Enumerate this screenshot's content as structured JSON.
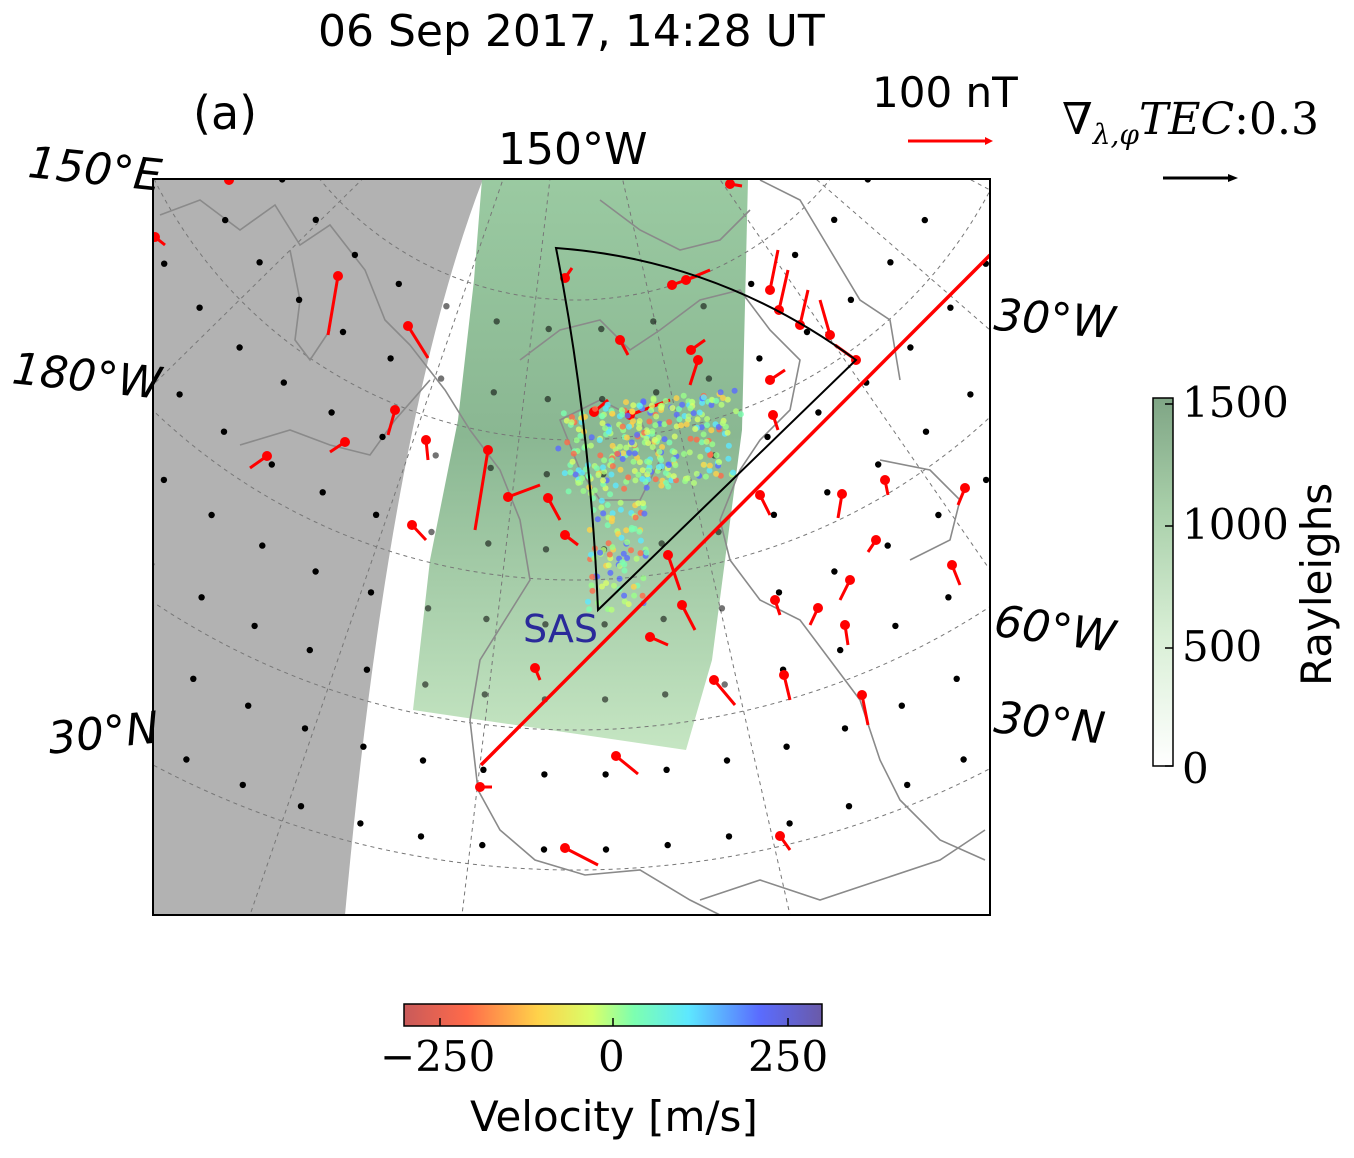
{
  "title": "06 Sep 2017, 14:28 UT",
  "panel_label": "(a)",
  "map": {
    "lon_labels": {
      "top": "150°W",
      "top_left": "150°E",
      "left": "180°W",
      "right_upper": "30°W",
      "right_lower": "60°W"
    },
    "lat_labels": {
      "left": "30°N",
      "right": "30°N"
    },
    "radar_label": "SAS",
    "colors": {
      "night_shade": "#b2b2b2",
      "aurora_green": "#7fb88a",
      "vector_red": "#ff0000",
      "fov_outline": "#000000",
      "coast": "#808080"
    }
  },
  "legend": {
    "mag_scale_label": "100 nT",
    "tec_scale_label": "∇λ,φTEC:0.3",
    "tec_scale_prefix": "∇",
    "tec_scale_sub": "λ,φ",
    "tec_scale_main": "TEC",
    "tec_scale_value": ":0.3"
  },
  "colorbar_rayleighs": {
    "label": "Rayleighs",
    "ticks": [
      "1500",
      "1000",
      "500",
      "0"
    ],
    "range": [
      0,
      1500
    ]
  },
  "colorbar_velocity": {
    "label": "Velocity [m/s]",
    "ticks": [
      "−250",
      "0",
      "250"
    ],
    "range": [
      -300,
      300
    ]
  }
}
